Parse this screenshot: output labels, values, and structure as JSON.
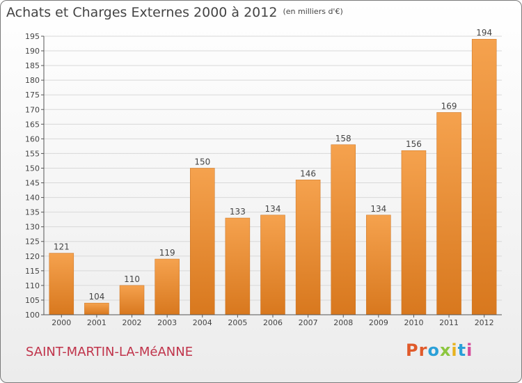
{
  "header": {
    "title": "Achats et Charges Externes 2000 à 2012",
    "unit": "(en milliers d'€)"
  },
  "footer": {
    "commune": "SAINT-MARTIN-LA-MéANNE",
    "logo_text": "Proxiti",
    "logo_colors": [
      "#e05a2a",
      "#e05a2a",
      "#2aa0d8",
      "#8cc63e",
      "#e7b21e",
      "#2aa0d8",
      "#d64b9a"
    ]
  },
  "colors": {
    "bar_top": "#f5a24e",
    "bar_bottom": "#d8781e",
    "grid": "#d8d8d8",
    "axis": "#555555",
    "commune": "#c0334a"
  },
  "chart_data": {
    "type": "bar",
    "title": "Achats et Charges Externes 2000 à 2012",
    "subtitle": "(en milliers d'€)",
    "xlabel": "",
    "ylabel": "",
    "categories": [
      "2000",
      "2001",
      "2002",
      "2003",
      "2004",
      "2005",
      "2006",
      "2007",
      "2008",
      "2009",
      "2010",
      "2011",
      "2012"
    ],
    "values": [
      121,
      104,
      110,
      119,
      150,
      133,
      134,
      146,
      158,
      134,
      156,
      169,
      194
    ],
    "ylim": [
      100,
      195
    ],
    "yticks": [
      100,
      105,
      110,
      115,
      120,
      125,
      130,
      135,
      140,
      145,
      150,
      155,
      160,
      165,
      170,
      175,
      180,
      185,
      190,
      195
    ],
    "grid": true,
    "legend": "none"
  }
}
